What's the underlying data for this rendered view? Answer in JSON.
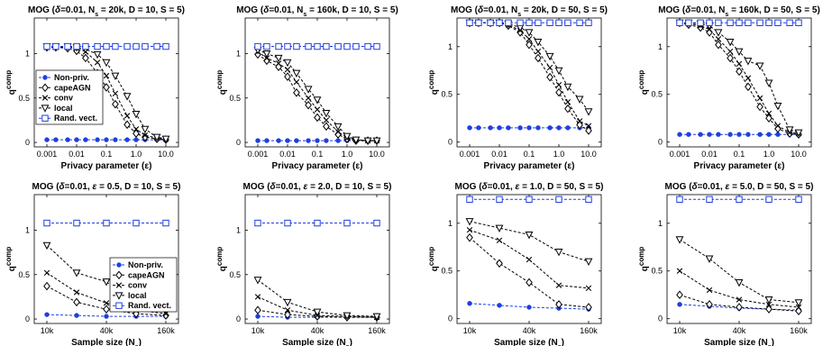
{
  "figure": {
    "ylabel": "q",
    "ylabel_sup": "comp",
    "xlabel_privacy": "Privacy parameter (ε)",
    "xlabel_sample": "Sample size (N",
    "xlabel_sample_sub": "s",
    "xlabel_sample_close": ")"
  },
  "colors": {
    "nonpriv": "#1f3fe0",
    "randvect": "#1f3fe0",
    "cape": "#000000",
    "conv": "#000000",
    "local": "#000000"
  },
  "legend": [
    "Non-priv.",
    "capeAGN",
    "conv",
    "local",
    "Rand. vect."
  ],
  "chart_data": [
    {
      "type": "line",
      "title_parts": [
        "MOG (",
        "δ",
        "=0.01, N",
        "s",
        " = 20k, D = 10, S = 5)"
      ],
      "xlabel": "Privacy parameter (ε)",
      "ylabel": "q^comp",
      "x_ticks": [
        "0.001",
        "0.01",
        "0.1",
        "1.0",
        "10.0"
      ],
      "y_ticks": [
        "0",
        "0.5",
        "1"
      ],
      "ylim": [
        -0.05,
        1.4
      ],
      "legend_visible": true,
      "legend_position": "left",
      "x": [
        0.001,
        0.002,
        0.005,
        0.01,
        0.02,
        0.05,
        0.1,
        0.2,
        0.5,
        1.0,
        2.0,
        5.0,
        10.0
      ],
      "series": [
        {
          "name": "Non-priv.",
          "marker": "dot",
          "values": [
            0.03,
            0.03,
            0.03,
            0.03,
            0.03,
            0.03,
            0.03,
            0.03,
            0.03,
            0.03,
            0.03,
            0.03,
            0.03
          ]
        },
        {
          "name": "capeAGN",
          "marker": "diamond",
          "values": [
            1.07,
            1.07,
            1.06,
            1.03,
            0.95,
            0.78,
            0.62,
            0.43,
            0.2,
            0.1,
            0.06,
            0.04,
            0.03
          ]
        },
        {
          "name": "conv",
          "marker": "x",
          "values": [
            1.07,
            1.07,
            1.07,
            1.06,
            1.02,
            0.9,
            0.75,
            0.55,
            0.3,
            0.15,
            0.08,
            0.05,
            0.04
          ]
        },
        {
          "name": "local",
          "marker": "triangle",
          "values": [
            1.08,
            1.08,
            1.08,
            1.07,
            1.05,
            0.99,
            0.9,
            0.75,
            0.52,
            0.32,
            0.15,
            0.06,
            0.04
          ]
        },
        {
          "name": "Rand. vect.",
          "marker": "square",
          "values": [
            1.08,
            1.08,
            1.08,
            1.08,
            1.08,
            1.08,
            1.08,
            1.08,
            1.08,
            1.08,
            1.08,
            1.08,
            1.08
          ]
        }
      ]
    },
    {
      "type": "line",
      "title_parts": [
        "MOG (",
        "δ",
        "=0.01, N",
        "s",
        " = 160k, D = 10, S = 5)"
      ],
      "xlabel": "Privacy parameter (ε)",
      "ylabel": "q^comp",
      "x_ticks": [
        "0.001",
        "0.01",
        "0.1",
        "1.0",
        "10.0"
      ],
      "y_ticks": [
        "0",
        "0.5",
        "1"
      ],
      "ylim": [
        -0.05,
        1.4
      ],
      "legend_visible": false,
      "x": [
        0.001,
        0.002,
        0.005,
        0.01,
        0.02,
        0.05,
        0.1,
        0.2,
        0.5,
        1.0,
        2.0,
        5.0,
        10.0
      ],
      "series": [
        {
          "name": "Non-priv.",
          "marker": "dot",
          "values": [
            0.02,
            0.02,
            0.02,
            0.02,
            0.02,
            0.02,
            0.02,
            0.02,
            0.02,
            0.02,
            0.02,
            0.02,
            0.02
          ]
        },
        {
          "name": "capeAGN",
          "marker": "diamond",
          "values": [
            0.99,
            0.92,
            0.85,
            0.74,
            0.56,
            0.42,
            0.28,
            0.18,
            0.09,
            0.04,
            0.02,
            0.02,
            0.02
          ]
        },
        {
          "name": "conv",
          "marker": "x",
          "values": [
            1.02,
            0.95,
            0.89,
            0.82,
            0.68,
            0.5,
            0.37,
            0.25,
            0.12,
            0.05,
            0.03,
            0.02,
            0.02
          ]
        },
        {
          "name": "local",
          "marker": "triangle",
          "values": [
            1.04,
            1.0,
            0.95,
            0.9,
            0.78,
            0.6,
            0.48,
            0.33,
            0.18,
            0.07,
            0.03,
            0.02,
            0.02
          ]
        },
        {
          "name": "Rand. vect.",
          "marker": "square",
          "values": [
            1.08,
            1.08,
            1.08,
            1.08,
            1.08,
            1.08,
            1.08,
            1.08,
            1.08,
            1.08,
            1.08,
            1.08,
            1.08
          ]
        }
      ]
    },
    {
      "type": "line",
      "title_parts": [
        "MOG (",
        "δ",
        "=0.01, N",
        "s",
        " = 20k, D = 50, S = 5)"
      ],
      "xlabel": "Privacy parameter (ε)",
      "ylabel": "q^comp",
      "x_ticks": [
        "0.001",
        "0.01",
        "0.1",
        "1.0",
        "10.0"
      ],
      "y_ticks": [
        "0",
        "0.5",
        "1"
      ],
      "ylim": [
        -0.05,
        1.3
      ],
      "legend_visible": false,
      "x": [
        0.001,
        0.002,
        0.005,
        0.01,
        0.02,
        0.05,
        0.1,
        0.2,
        0.5,
        1.0,
        2.0,
        5.0,
        10.0
      ],
      "series": [
        {
          "name": "Non-priv.",
          "marker": "dot",
          "values": [
            0.15,
            0.15,
            0.15,
            0.15,
            0.15,
            0.15,
            0.15,
            0.15,
            0.15,
            0.15,
            0.15,
            0.15,
            0.15
          ]
        },
        {
          "name": "capeAGN",
          "marker": "diamond",
          "values": [
            1.25,
            1.25,
            1.25,
            1.25,
            1.22,
            1.15,
            1.02,
            0.88,
            0.68,
            0.52,
            0.35,
            0.18,
            0.12
          ]
        },
        {
          "name": "conv",
          "marker": "x",
          "values": [
            1.25,
            1.25,
            1.25,
            1.25,
            1.23,
            1.17,
            1.08,
            0.95,
            0.78,
            0.6,
            0.42,
            0.22,
            0.17
          ]
        },
        {
          "name": "local",
          "marker": "triangle",
          "values": [
            1.25,
            1.25,
            1.25,
            1.25,
            1.24,
            1.2,
            1.15,
            1.05,
            0.9,
            0.75,
            0.58,
            0.45,
            0.32
          ]
        },
        {
          "name": "Rand. vect.",
          "marker": "square",
          "values": [
            1.25,
            1.25,
            1.25,
            1.25,
            1.25,
            1.25,
            1.25,
            1.25,
            1.25,
            1.25,
            1.25,
            1.25,
            1.25
          ]
        }
      ]
    },
    {
      "type": "line",
      "title_parts": [
        "MOG (",
        "δ",
        "=0.01, N",
        "s",
        " = 160k, D = 50, S = 5)"
      ],
      "xlabel": "Privacy parameter (ε)",
      "ylabel": "q^comp",
      "x_ticks": [
        "0.001",
        "0.01",
        "0.1",
        "1.0",
        "10.0"
      ],
      "y_ticks": [
        "0",
        "0.5",
        "1"
      ],
      "ylim": [
        -0.05,
        1.3
      ],
      "legend_visible": false,
      "x": [
        0.001,
        0.002,
        0.005,
        0.01,
        0.02,
        0.05,
        0.1,
        0.2,
        0.5,
        1.0,
        2.0,
        5.0,
        10.0
      ],
      "series": [
        {
          "name": "Non-priv.",
          "marker": "dot",
          "values": [
            0.08,
            0.08,
            0.08,
            0.08,
            0.08,
            0.08,
            0.08,
            0.08,
            0.08,
            0.08,
            0.08,
            0.08,
            0.08
          ]
        },
        {
          "name": "capeAGN",
          "marker": "diamond",
          "values": [
            1.25,
            1.23,
            1.2,
            1.15,
            1.02,
            0.88,
            0.74,
            0.58,
            0.37,
            0.25,
            0.14,
            0.09,
            0.08
          ]
        },
        {
          "name": "conv",
          "marker": "x",
          "values": [
            1.25,
            1.24,
            1.22,
            1.18,
            1.08,
            0.95,
            0.82,
            0.67,
            0.46,
            0.3,
            0.17,
            0.1,
            0.09
          ]
        },
        {
          "name": "local",
          "marker": "triangle",
          "values": [
            1.25,
            1.25,
            1.24,
            1.22,
            1.15,
            1.05,
            0.95,
            0.85,
            0.8,
            0.62,
            0.38,
            0.13,
            0.1
          ]
        },
        {
          "name": "Rand. vect.",
          "marker": "square",
          "values": [
            1.25,
            1.25,
            1.25,
            1.25,
            1.25,
            1.25,
            1.25,
            1.25,
            1.25,
            1.25,
            1.25,
            1.25,
            1.25
          ]
        }
      ]
    },
    {
      "type": "line",
      "title_parts": [
        "MOG (",
        "δ",
        "=0.01, ",
        "ε",
        " = 0.5, D = 10, S = 5)"
      ],
      "xlabel": "Sample size (N_s)",
      "ylabel": "q^comp",
      "x_ticks": [
        "10k",
        "40k",
        "160k"
      ],
      "y_ticks": [
        "0",
        "0.5",
        "1"
      ],
      "ylim": [
        -0.05,
        1.4
      ],
      "legend_visible": true,
      "legend_position": "right",
      "x": [
        10000,
        20000,
        40000,
        80000,
        160000
      ],
      "series": [
        {
          "name": "Non-priv.",
          "marker": "dot",
          "values": [
            0.05,
            0.04,
            0.03,
            0.03,
            0.03
          ]
        },
        {
          "name": "capeAGN",
          "marker": "diamond",
          "values": [
            0.37,
            0.19,
            0.11,
            0.06,
            0.04
          ]
        },
        {
          "name": "conv",
          "marker": "x",
          "values": [
            0.52,
            0.3,
            0.18,
            0.1,
            0.06
          ]
        },
        {
          "name": "local",
          "marker": "triangle",
          "values": [
            0.83,
            0.52,
            0.42,
            0.12,
            0.11
          ]
        },
        {
          "name": "Rand. vect.",
          "marker": "square",
          "values": [
            1.08,
            1.08,
            1.08,
            1.08,
            1.08
          ]
        }
      ]
    },
    {
      "type": "line",
      "title_parts": [
        "MOG (",
        "δ",
        "=0.01, ",
        "ε",
        " = 2.0, D = 10, S = 5)"
      ],
      "xlabel": "Sample size (N_s)",
      "ylabel": "q^comp",
      "x_ticks": [
        "10k",
        "40k",
        "160k"
      ],
      "y_ticks": [
        "0",
        "0.5",
        "1"
      ],
      "ylim": [
        -0.05,
        1.4
      ],
      "legend_visible": false,
      "x": [
        10000,
        20000,
        40000,
        80000,
        160000
      ],
      "series": [
        {
          "name": "Non-priv.",
          "marker": "dot",
          "values": [
            0.03,
            0.02,
            0.02,
            0.02,
            0.02
          ]
        },
        {
          "name": "capeAGN",
          "marker": "diamond",
          "values": [
            0.1,
            0.05,
            0.03,
            0.02,
            0.02
          ]
        },
        {
          "name": "conv",
          "marker": "x",
          "values": [
            0.25,
            0.1,
            0.04,
            0.03,
            0.02
          ]
        },
        {
          "name": "local",
          "marker": "triangle",
          "values": [
            0.44,
            0.19,
            0.08,
            0.04,
            0.03
          ]
        },
        {
          "name": "Rand. vect.",
          "marker": "square",
          "values": [
            1.08,
            1.08,
            1.08,
            1.08,
            1.08
          ]
        }
      ]
    },
    {
      "type": "line",
      "title_parts": [
        "MOG (",
        "δ",
        "=0.01, ",
        "ε",
        " = 1.0, D = 50, S = 5)"
      ],
      "xlabel": "Sample size (N_s)",
      "ylabel": "q^comp",
      "x_ticks": [
        "10k",
        "40k",
        "160k"
      ],
      "y_ticks": [
        "0",
        "0.5",
        "1"
      ],
      "ylim": [
        -0.05,
        1.3
      ],
      "legend_visible": false,
      "x": [
        10000,
        20000,
        40000,
        80000,
        160000
      ],
      "series": [
        {
          "name": "Non-priv.",
          "marker": "dot",
          "values": [
            0.16,
            0.14,
            0.12,
            0.11,
            0.1
          ]
        },
        {
          "name": "capeAGN",
          "marker": "diamond",
          "values": [
            0.85,
            0.58,
            0.38,
            0.15,
            0.12
          ]
        },
        {
          "name": "conv",
          "marker": "x",
          "values": [
            0.93,
            0.82,
            0.62,
            0.35,
            0.32
          ]
        },
        {
          "name": "local",
          "marker": "triangle",
          "values": [
            1.02,
            0.95,
            0.88,
            0.7,
            0.6
          ]
        },
        {
          "name": "Rand. vect.",
          "marker": "square",
          "values": [
            1.25,
            1.25,
            1.25,
            1.25,
            1.25
          ]
        }
      ]
    },
    {
      "type": "line",
      "title_parts": [
        "MOG (",
        "δ",
        "=0.01, ",
        "ε",
        " = 5.0, D = 50, S = 5)"
      ],
      "xlabel": "Sample size (N_s)",
      "ylabel": "q^comp",
      "x_ticks": [
        "10k",
        "40k",
        "160k"
      ],
      "y_ticks": [
        "0",
        "0.5",
        "1"
      ],
      "ylim": [
        -0.05,
        1.3
      ],
      "legend_visible": false,
      "x": [
        10000,
        20000,
        40000,
        80000,
        160000
      ],
      "series": [
        {
          "name": "Non-priv.",
          "marker": "dot",
          "values": [
            0.15,
            0.13,
            0.11,
            0.1,
            0.09
          ]
        },
        {
          "name": "capeAGN",
          "marker": "diamond",
          "values": [
            0.25,
            0.15,
            0.12,
            0.1,
            0.08
          ]
        },
        {
          "name": "conv",
          "marker": "x",
          "values": [
            0.5,
            0.3,
            0.2,
            0.15,
            0.12
          ]
        },
        {
          "name": "local",
          "marker": "triangle",
          "values": [
            0.83,
            0.63,
            0.38,
            0.2,
            0.17
          ]
        },
        {
          "name": "Rand. vect.",
          "marker": "square",
          "values": [
            1.25,
            1.25,
            1.25,
            1.25,
            1.25
          ]
        }
      ]
    }
  ]
}
